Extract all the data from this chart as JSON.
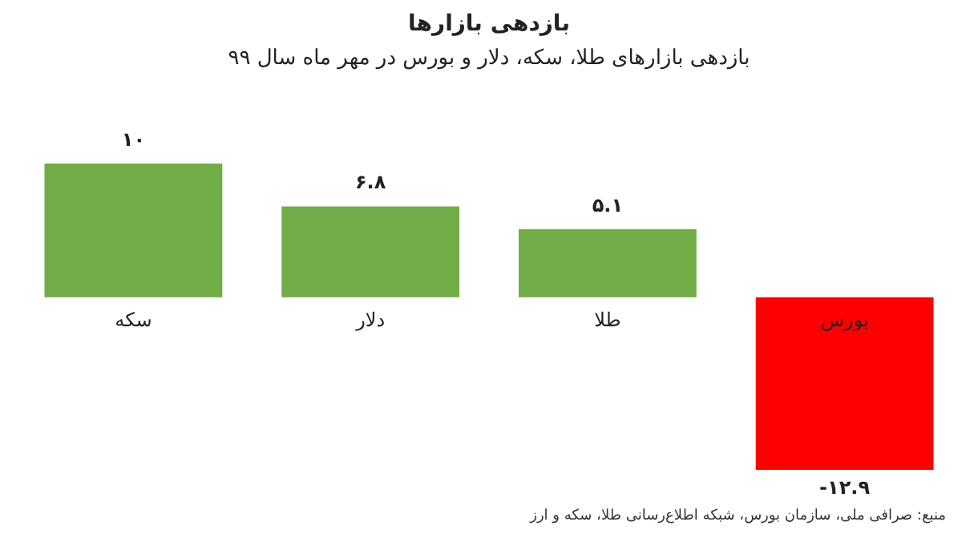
{
  "chart_data": {
    "type": "bar",
    "title": "بازدهی بازارها",
    "subtitle": "بازدهی بازارهای طلا، سکه، دلار و بورس در مهر ماه سال ۹۹",
    "categories": [
      "سکه",
      "دلار",
      "طلا",
      "بورس"
    ],
    "values": [
      10,
      6.8,
      5.1,
      -12.9
    ],
    "colors": [
      "#70ad47",
      "#70ad47",
      "#70ad47",
      "#ff0000"
    ],
    "value_labels": [
      "۱۰",
      "۶.۸",
      "۵.۱",
      "-۱۲.۹"
    ],
    "annotations": [
      "منبع: صرافی ملی، سازمان بورس، شبکه اطلاع‌رسانی طلا، سکه و ارز"
    ]
  }
}
